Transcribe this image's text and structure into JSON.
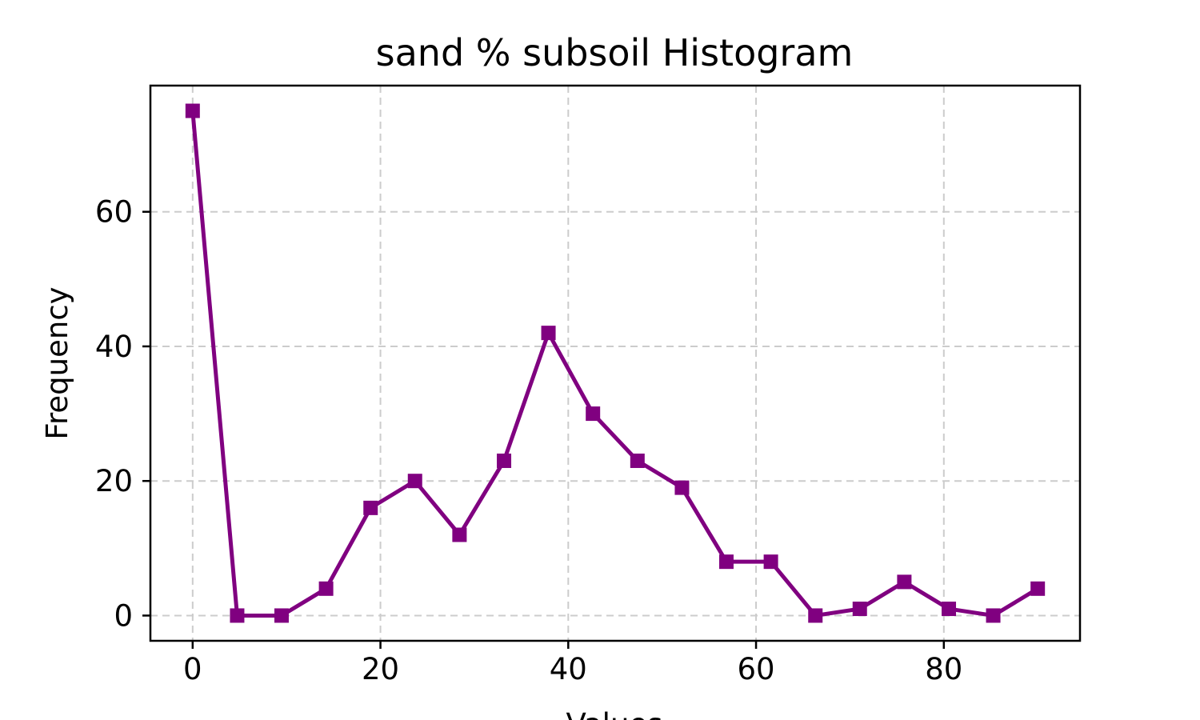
{
  "chart_data": {
    "type": "line",
    "title": "sand % subsoil Histogram",
    "xlabel": "Values",
    "ylabel": "Frequency",
    "xlim": [
      -4.5,
      94.5
    ],
    "ylim": [
      -3.75,
      78.75
    ],
    "xticks": [
      0,
      20,
      40,
      60,
      80
    ],
    "yticks": [
      0,
      20,
      40,
      60
    ],
    "grid": true,
    "color": "#800080",
    "marker": "square",
    "series": [
      {
        "x": [
          0,
          4.74,
          9.47,
          14.21,
          18.95,
          23.68,
          28.42,
          33.16,
          37.89,
          42.63,
          47.37,
          52.11,
          56.84,
          61.58,
          66.32,
          71.05,
          75.79,
          80.53,
          85.26,
          90
        ],
        "values": [
          75,
          0,
          0,
          4,
          16,
          20,
          12,
          23,
          42,
          30,
          23,
          19,
          8,
          8,
          0,
          1,
          5,
          1,
          0,
          4
        ]
      }
    ]
  }
}
